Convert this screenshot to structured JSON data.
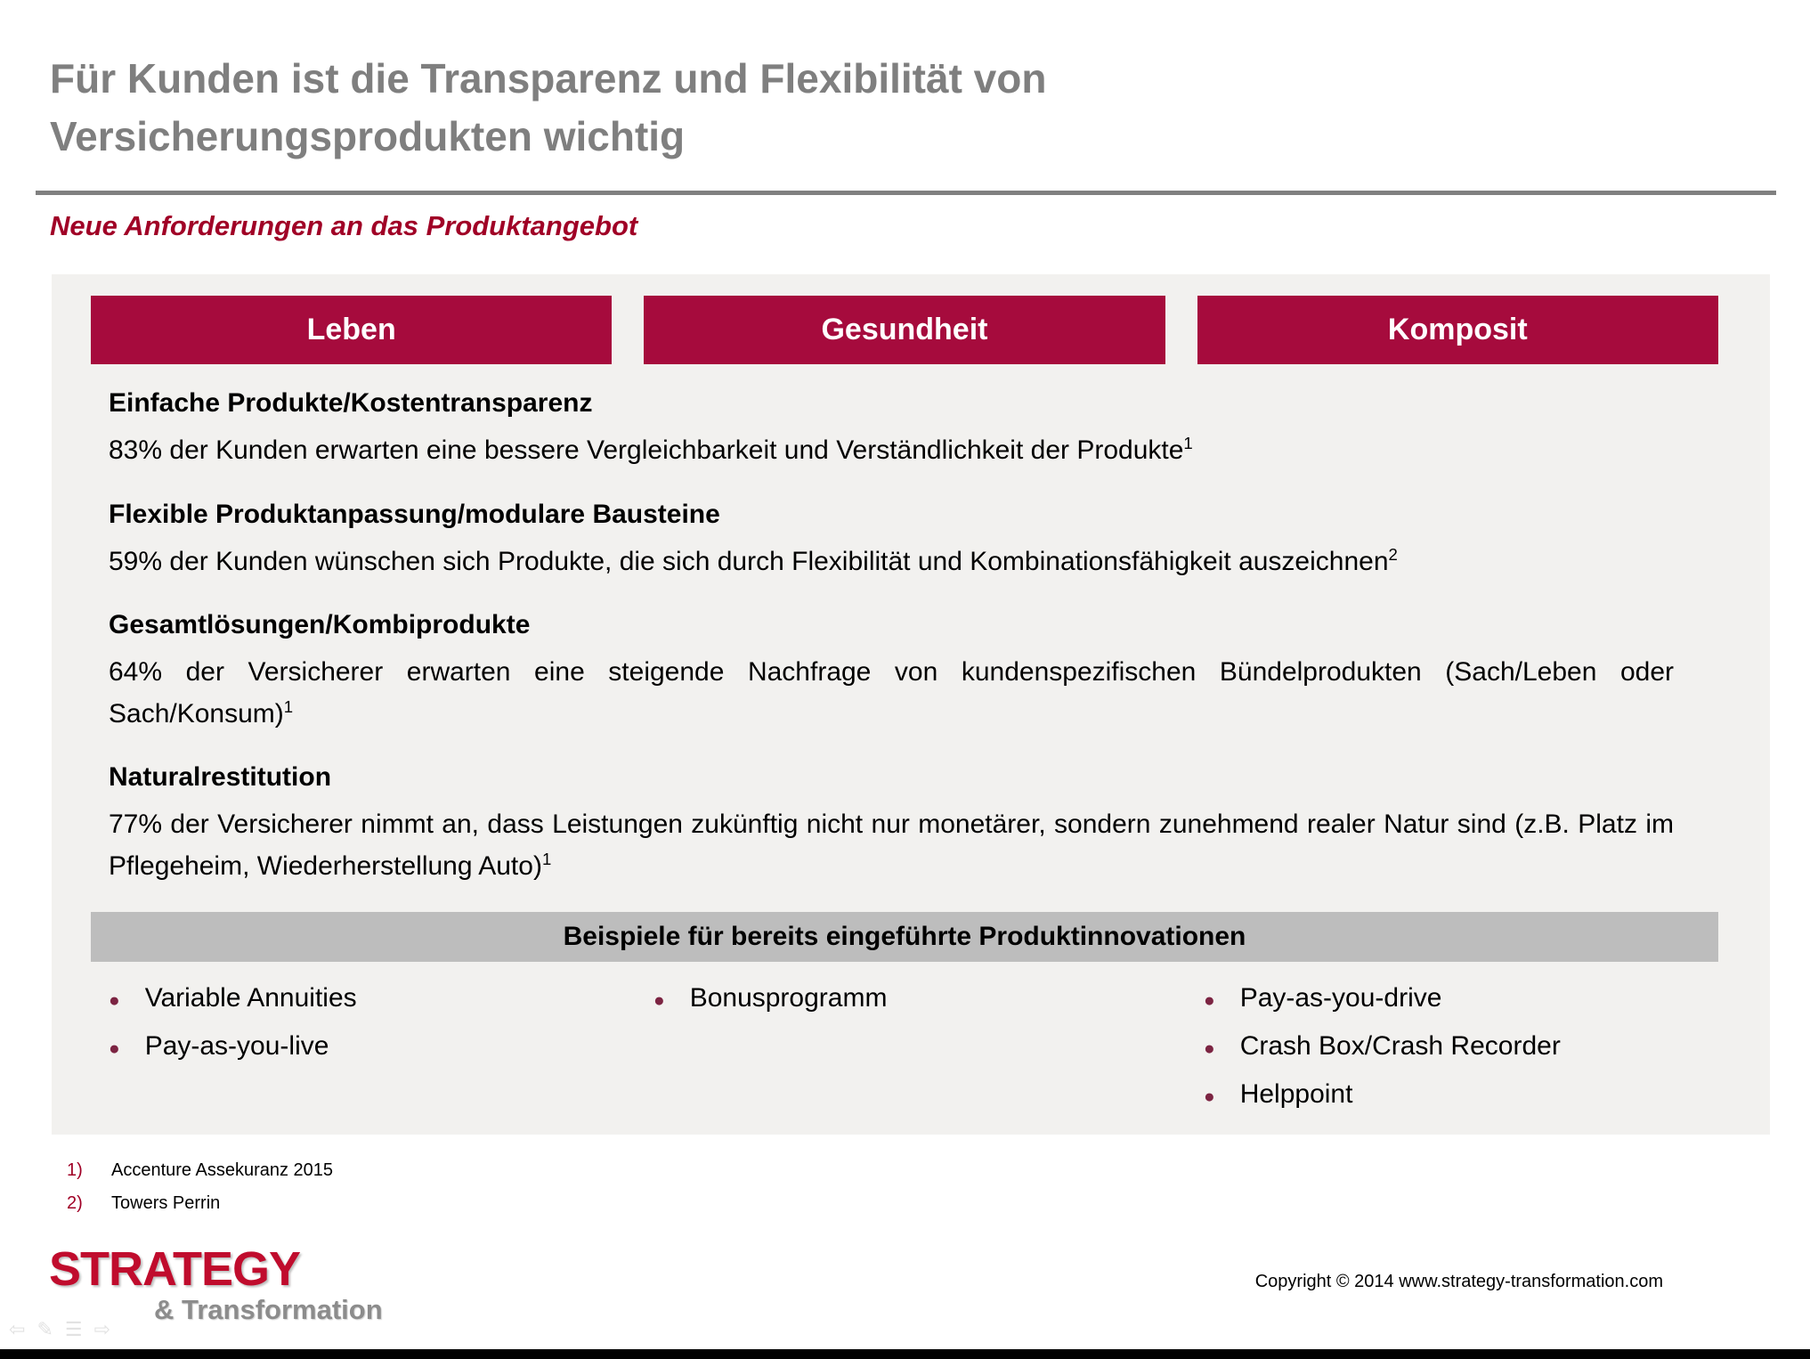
{
  "title": {
    "line1": "Für Kunden ist die Transparenz und Flexibilität von",
    "line2": "Versicherungsprodukten wichtig"
  },
  "subtitle": "Neue Anforderungen an das Produktangebot",
  "columns": [
    {
      "label": "Leben"
    },
    {
      "label": "Gesundheit"
    },
    {
      "label": "Komposit"
    }
  ],
  "sections": [
    {
      "heading": "Einfache Produkte/Kostentransparenz",
      "body": "83% der Kunden erwarten eine bessere Vergleichbarkeit und Verständlichkeit der Produkte",
      "ref": "1"
    },
    {
      "heading": "Flexible Produktanpassung/modulare Bausteine",
      "body": "59% der Kunden wünschen sich Produkte, die sich durch Flexibilität und Kombinationsfähigkeit auszeichnen",
      "ref": "2"
    },
    {
      "heading": "Gesamtlösungen/Kombiprodukte",
      "body": "64% der Versicherer erwarten eine steigende Nachfrage von kundenspezifischen Bündelprodukten (Sach/Leben oder Sach/Konsum)",
      "ref": "1"
    },
    {
      "heading": "Naturalrestitution",
      "body": "77% der Versicherer nimmt an, dass Leistungen zukünftig nicht nur monetärer, sondern zunehmend realer Natur sind (z.B. Platz im Pflegeheim, Wiederherstellung Auto)",
      "ref": "1"
    }
  ],
  "examples": {
    "header": "Beispiele für bereits eingeführte Produktinnovationen",
    "col1": [
      "Variable Annuities",
      "Pay-as-you-live"
    ],
    "col2": [
      "Bonusprogramm"
    ],
    "col3": [
      "Pay-as-you-drive",
      "Crash Box/Crash Recorder",
      "Helppoint"
    ]
  },
  "footnotes": [
    {
      "num": "1)",
      "text": "Accenture Assekuranz 2015"
    },
    {
      "num": "2)",
      "text": "Towers Perrin"
    }
  ],
  "footer": {
    "logo_line1": "STRATEGY",
    "logo_line2": "& Transformation",
    "copyright": "Copyright © 2014 www.strategy-transformation.com"
  },
  "nav": {
    "back": "⇦",
    "pen": "✎",
    "list": "☰",
    "forward": "⇨"
  },
  "colors": {
    "brand_red": "#A60B3D",
    "dark_red": "#A00026",
    "title_gray": "#7F7F7F",
    "panel_bg": "#F2F1EF",
    "examples_bar_bg": "#BDBDBD",
    "bullet": "#7C2442",
    "logo_red": "#C00C2D"
  }
}
